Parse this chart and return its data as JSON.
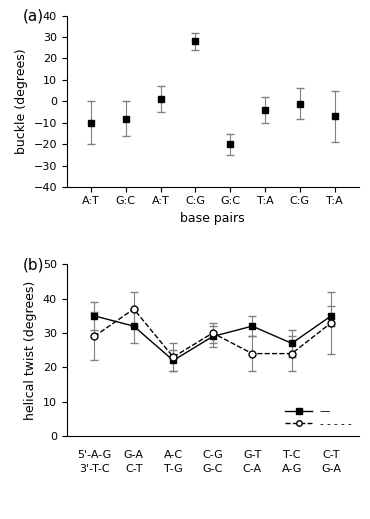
{
  "panel_a": {
    "x": [
      1,
      2,
      3,
      4,
      5,
      6,
      7,
      8
    ],
    "y": [
      -10,
      -8,
      1,
      28,
      -20,
      -4,
      -1,
      -7
    ],
    "yerr": [
      10,
      8,
      6,
      4,
      5,
      6,
      7,
      12
    ],
    "xtick_labels": [
      "A:T",
      "G:C",
      "A:T",
      "C:G",
      "G:C",
      "T:A",
      "C:G",
      "T:A"
    ],
    "ylabel": "buckle (degrees)",
    "xlabel": "base pairs",
    "ylim": [
      -40,
      40
    ],
    "yticks": [
      -40,
      -30,
      -20,
      -10,
      0,
      10,
      20,
      30,
      40
    ],
    "panel_label": "(a)"
  },
  "panel_b": {
    "solid": {
      "x": [
        1,
        2,
        3,
        4,
        5,
        6,
        7
      ],
      "y": [
        35,
        32,
        22,
        29,
        32,
        27,
        35
      ],
      "yerr": [
        4,
        5,
        3,
        3,
        3,
        4,
        3
      ]
    },
    "dashed": {
      "x": [
        1,
        2,
        3,
        4,
        5,
        6,
        7
      ],
      "y": [
        29,
        37,
        23,
        30,
        24,
        24,
        33
      ],
      "yerr": [
        7,
        5,
        4,
        3,
        5,
        5,
        9
      ]
    },
    "xtick_labels_top": [
      "5'-A-G",
      "G-A",
      "A-C",
      "C-G",
      "G-T",
      "T-C",
      "C-T"
    ],
    "xtick_labels_bottom": [
      "3'-T-C",
      "C-T",
      "T-G",
      "G-C",
      "C-A",
      "A-G",
      "G-A"
    ],
    "ylabel": "helical twist (degrees)",
    "ylim": [
      0,
      50
    ],
    "yticks": [
      0,
      10,
      20,
      30,
      40,
      50
    ],
    "panel_label": "(b)"
  },
  "marker_solid": "s",
  "marker_dashed": "o",
  "line_color": "black",
  "marker_color_solid": "black",
  "marker_color_dashed": "white",
  "marker_size": 5,
  "capsize": 3,
  "elinewidth": 0.8,
  "linewidth": 1.0,
  "ecolor": "gray",
  "fontsize_tick": 8,
  "fontsize_label": 9,
  "fontsize_panel": 11
}
